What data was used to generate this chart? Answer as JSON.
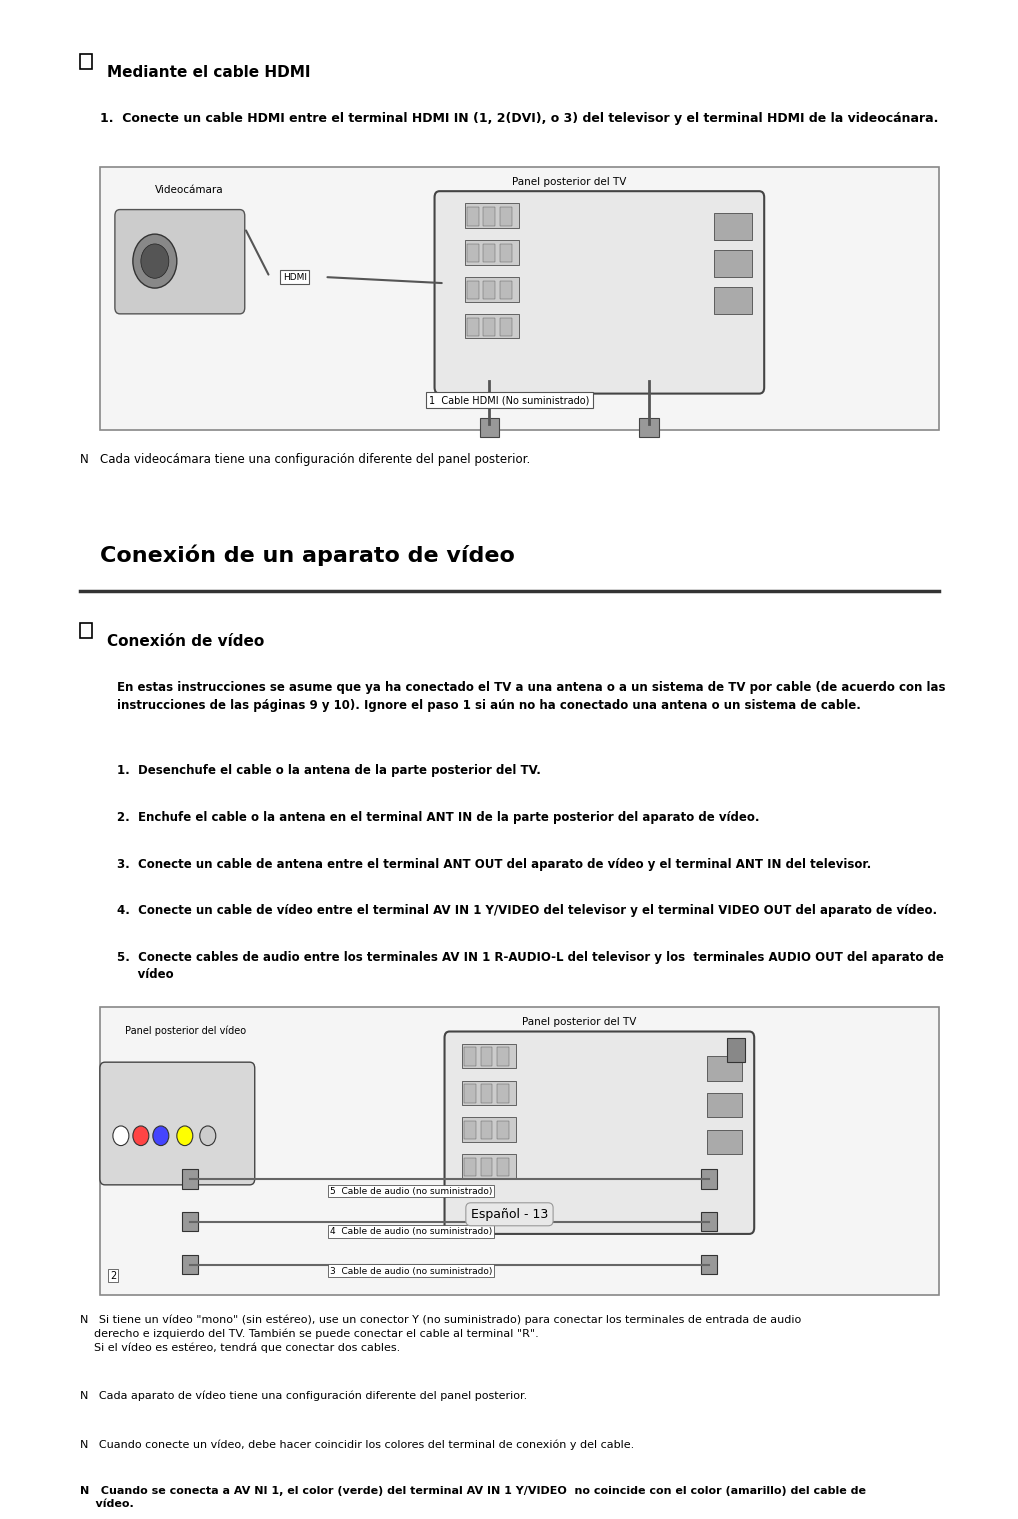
{
  "bg_color": "#ffffff",
  "text_color": "#000000",
  "page_width": 10.8,
  "page_height": 14.82,
  "section1_header": "Mediante el cable HDMI",
  "section1_step1": "1.  Conecte un cable HDMI entre el terminal HDMI IN (1, 2(DVI), o 3) del televisor y el terminal HDMI de la videocánara.",
  "section1_box_label": "Panel posterior del TV",
  "section1_cam_label": "Videocámara",
  "section1_cable_label": "1  Cable HDMI (No suministrado)",
  "section1_note": "N   Cada videocámara tiene una configuración diferente del panel posterior.",
  "section2_title": "Conexión de un aparato de vídeo",
  "section2_header": "Conexión de vídeo",
  "section2_intro": "En estas instrucciones se asume que ya ha conectado el TV a una antena o a un sistema de TV por cable (de acuerdo con las\ninstrucciones de las páginas 9 y 10). Ignore el paso 1 si aún no ha conectado una antena o un sistema de cable.",
  "section2_steps": [
    "1.  Desenchufe el cable o la antena de la parte posterior del TV.",
    "2.  Enchufe el cable o la antena en el terminal ANT IN de la parte posterior del aparato de vídeo.",
    "3.  Conecte un cable de antena entre el terminal ANT OUT del aparato de vídeo y el terminal ANT IN del televisor.",
    "4.  Conecte un cable de vídeo entre el terminal AV IN 1 Y/VIDEO del televisor y el terminal VIDEO OUT del aparato de vídeo.",
    "5.  Conecte cables de audio entre los terminales AV IN 1 R-AUDIO-L del televisor y los  terminales AUDIO OUT del aparato de\n     vídeo"
  ],
  "section2_box_label": "Panel posterior del TV",
  "section2_video_label": "Panel posterior del vídeo",
  "section2_cable3": "3  Cable de audio (no suministrado)",
  "section2_cable4": "4  Cable de audio (no suministrado)",
  "section2_cable5": "5  Cable de audio (no suministrado)",
  "section2_note1": "N   Si tiene un vídeo \"mono\" (sin estéreo), use un conector Y (no suministrado) para conectar los terminales de entrada de audio\n    derecho e izquierdo del TV. También se puede conectar el cable al terminal \"R\".\n    Si el vídeo es estéreo, tendrá que conectar dos cables.",
  "section2_note2": "N   Cada aparato de vídeo tiene una configuración diferente del panel posterior.",
  "section2_note3": "N   Cuando conecte un vídeo, debe hacer coincidir los colores del terminal de conexión y del cable.",
  "section2_note4": "N   Cuando se conecta a AV NI 1, el color (verde) del terminal AV IN 1 Y/VIDEO  no coincide con el color (amarillo) del cable de\n    vídeo.",
  "footer": "Español - 13",
  "box_border_color": "#888888",
  "box_fill_color": "#f5f5f5"
}
